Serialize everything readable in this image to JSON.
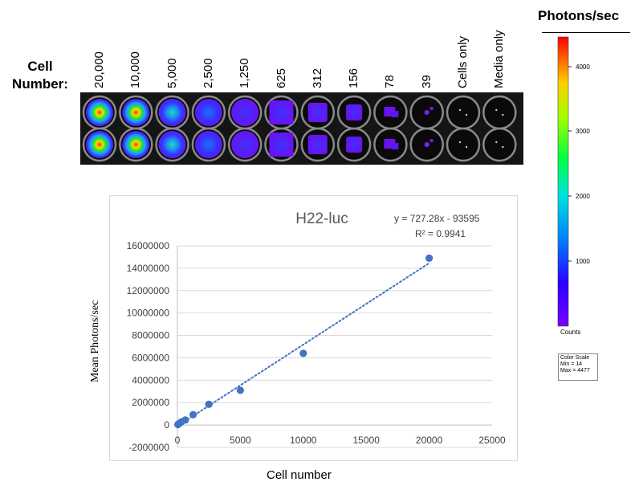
{
  "cell_number_label": "Cell Number:",
  "colorbar": {
    "title": "Photons/sec",
    "ticks": [
      "4000",
      "3000",
      "2000",
      "1000"
    ],
    "bottom_label": "Counts",
    "scale_box": [
      "Color Scale",
      "Min = 14",
      "Max = 4477"
    ]
  },
  "plate": {
    "columns": [
      "20,000",
      "10,000",
      "5,000",
      "2,500",
      "1,250",
      "625",
      "312",
      "156",
      "78",
      "39",
      "Cells only",
      "Media only"
    ]
  },
  "chart_data": {
    "type": "scatter",
    "title": "H22-luc",
    "xlabel": "Cell number",
    "ylabel": "Mean Photons/sec",
    "xlim": [
      0,
      25000
    ],
    "ylim": [
      -2000000,
      16000000
    ],
    "x_ticks": [
      "0",
      "5000",
      "10000",
      "15000",
      "20000",
      "25000"
    ],
    "y_ticks": [
      "-2000000",
      "0",
      "2000000",
      "4000000",
      "6000000",
      "8000000",
      "10000000",
      "12000000",
      "14000000",
      "16000000"
    ],
    "series": [
      {
        "name": "H22-luc",
        "x": [
          20000,
          10000,
          5000,
          2500,
          1250,
          625,
          312,
          156,
          78,
          39
        ],
        "y": [
          14900000,
          6400000,
          3100000,
          1850000,
          920000,
          450000,
          280000,
          150000,
          90000,
          40000
        ]
      }
    ],
    "trendline": {
      "equation": "y = 727.28x - 93595",
      "r2": "R² = 0.9941",
      "slope": 727.28,
      "intercept": -93595
    }
  }
}
